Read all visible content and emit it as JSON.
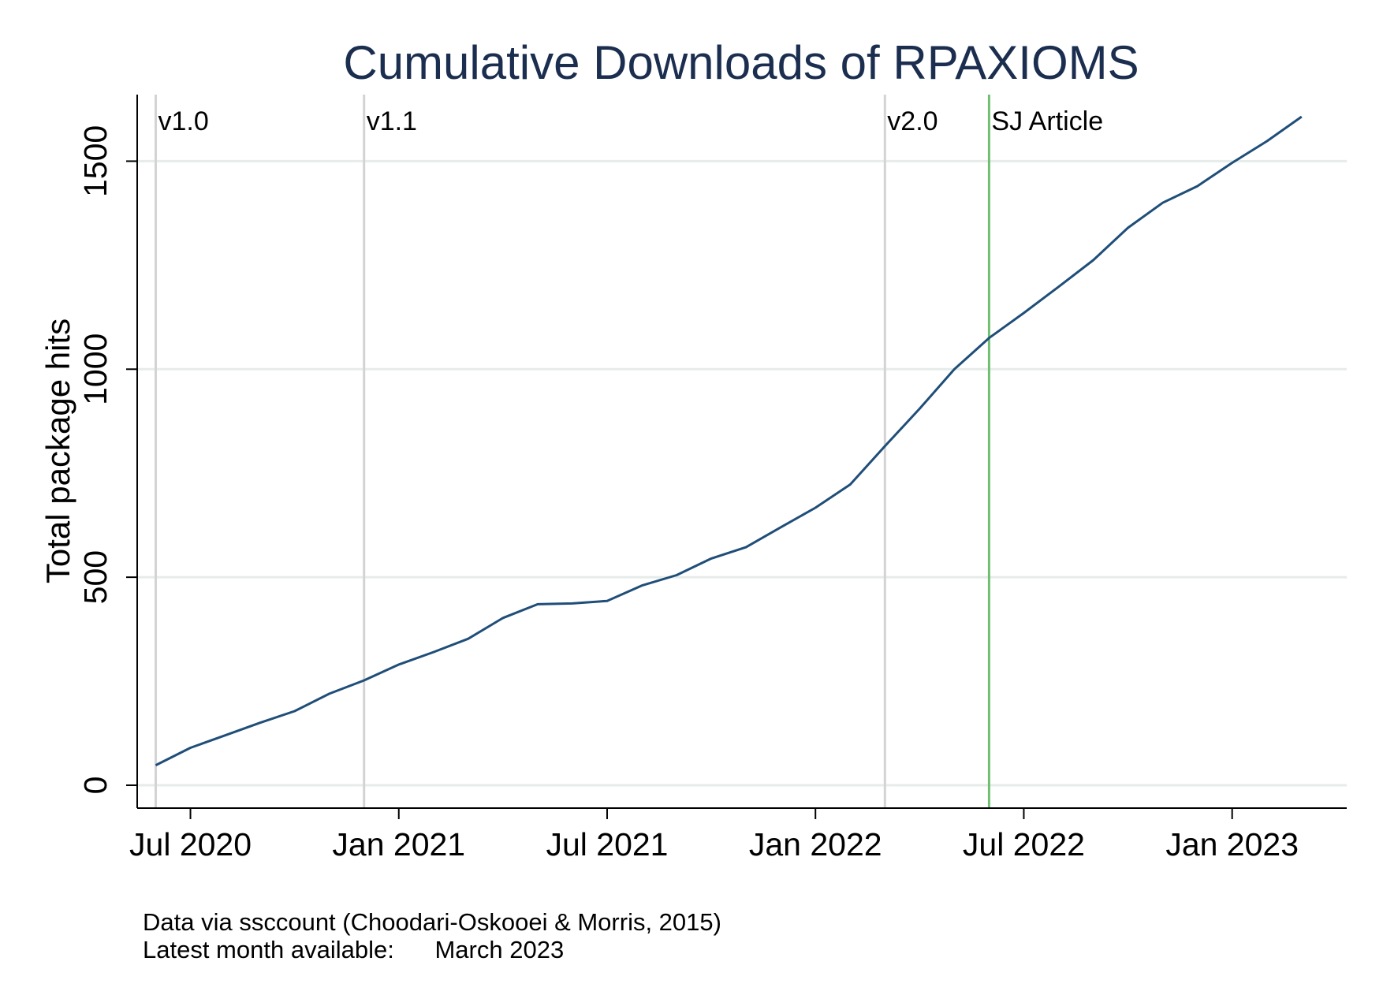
{
  "chart_data": {
    "type": "line",
    "title": "Cumulative Downloads of RPAXIOMS",
    "xlabel": "",
    "ylabel": "Total package hits",
    "x_ticks": [
      "Jul 2020",
      "Jan 2021",
      "Jul 2021",
      "Jan 2022",
      "Jul 2022",
      "Jan 2023"
    ],
    "y_ticks": [
      "0",
      "500",
      "1000",
      "1500"
    ],
    "ylim": [
      -55,
      1660
    ],
    "xlim": [
      "2020-05-15",
      "2023-04-10"
    ],
    "grid": true,
    "legend": "none",
    "line_color": "#1f4e79",
    "series": [
      {
        "x": [
          "2020-06",
          "2020-07",
          "2020-08",
          "2020-09",
          "2020-10",
          "2020-11",
          "2020-12",
          "2021-01",
          "2021-02",
          "2021-03",
          "2021-04",
          "2021-05",
          "2021-06",
          "2021-07",
          "2021-08",
          "2021-09",
          "2021-10",
          "2021-11",
          "2021-12",
          "2022-01",
          "2022-02",
          "2022-03",
          "2022-04",
          "2022-05",
          "2022-06",
          "2022-07",
          "2022-08",
          "2022-09",
          "2022-10",
          "2022-11",
          "2022-12",
          "2023-01",
          "2023-02",
          "2023-03"
        ],
        "values": [
          48,
          90,
          120,
          150,
          178,
          220,
          252,
          290,
          320,
          352,
          402,
          435,
          437,
          443,
          480,
          505,
          545,
          572,
          620,
          667,
          723,
          815,
          905,
          1000,
          1075,
          1135,
          1198,
          1262,
          1340,
          1400,
          1440,
          1496,
          1548,
          1607
        ]
      }
    ],
    "events": [
      {
        "label": "v1.0",
        "x": "2020-06-01",
        "color": "#d3d3d3"
      },
      {
        "label": "v1.1",
        "x": "2020-12-01",
        "color": "#d3d3d3"
      },
      {
        "label": "v2.0",
        "x": "2022-03-01",
        "color": "#d3d3d3"
      },
      {
        "label": "SJ Article",
        "x": "2022-06-01",
        "color": "#6fbf73"
      }
    ],
    "notes": [
      "Data via ssccount (Choodari-Oskooei & Morris, 2015)",
      "Latest month available:      March 2023"
    ]
  }
}
